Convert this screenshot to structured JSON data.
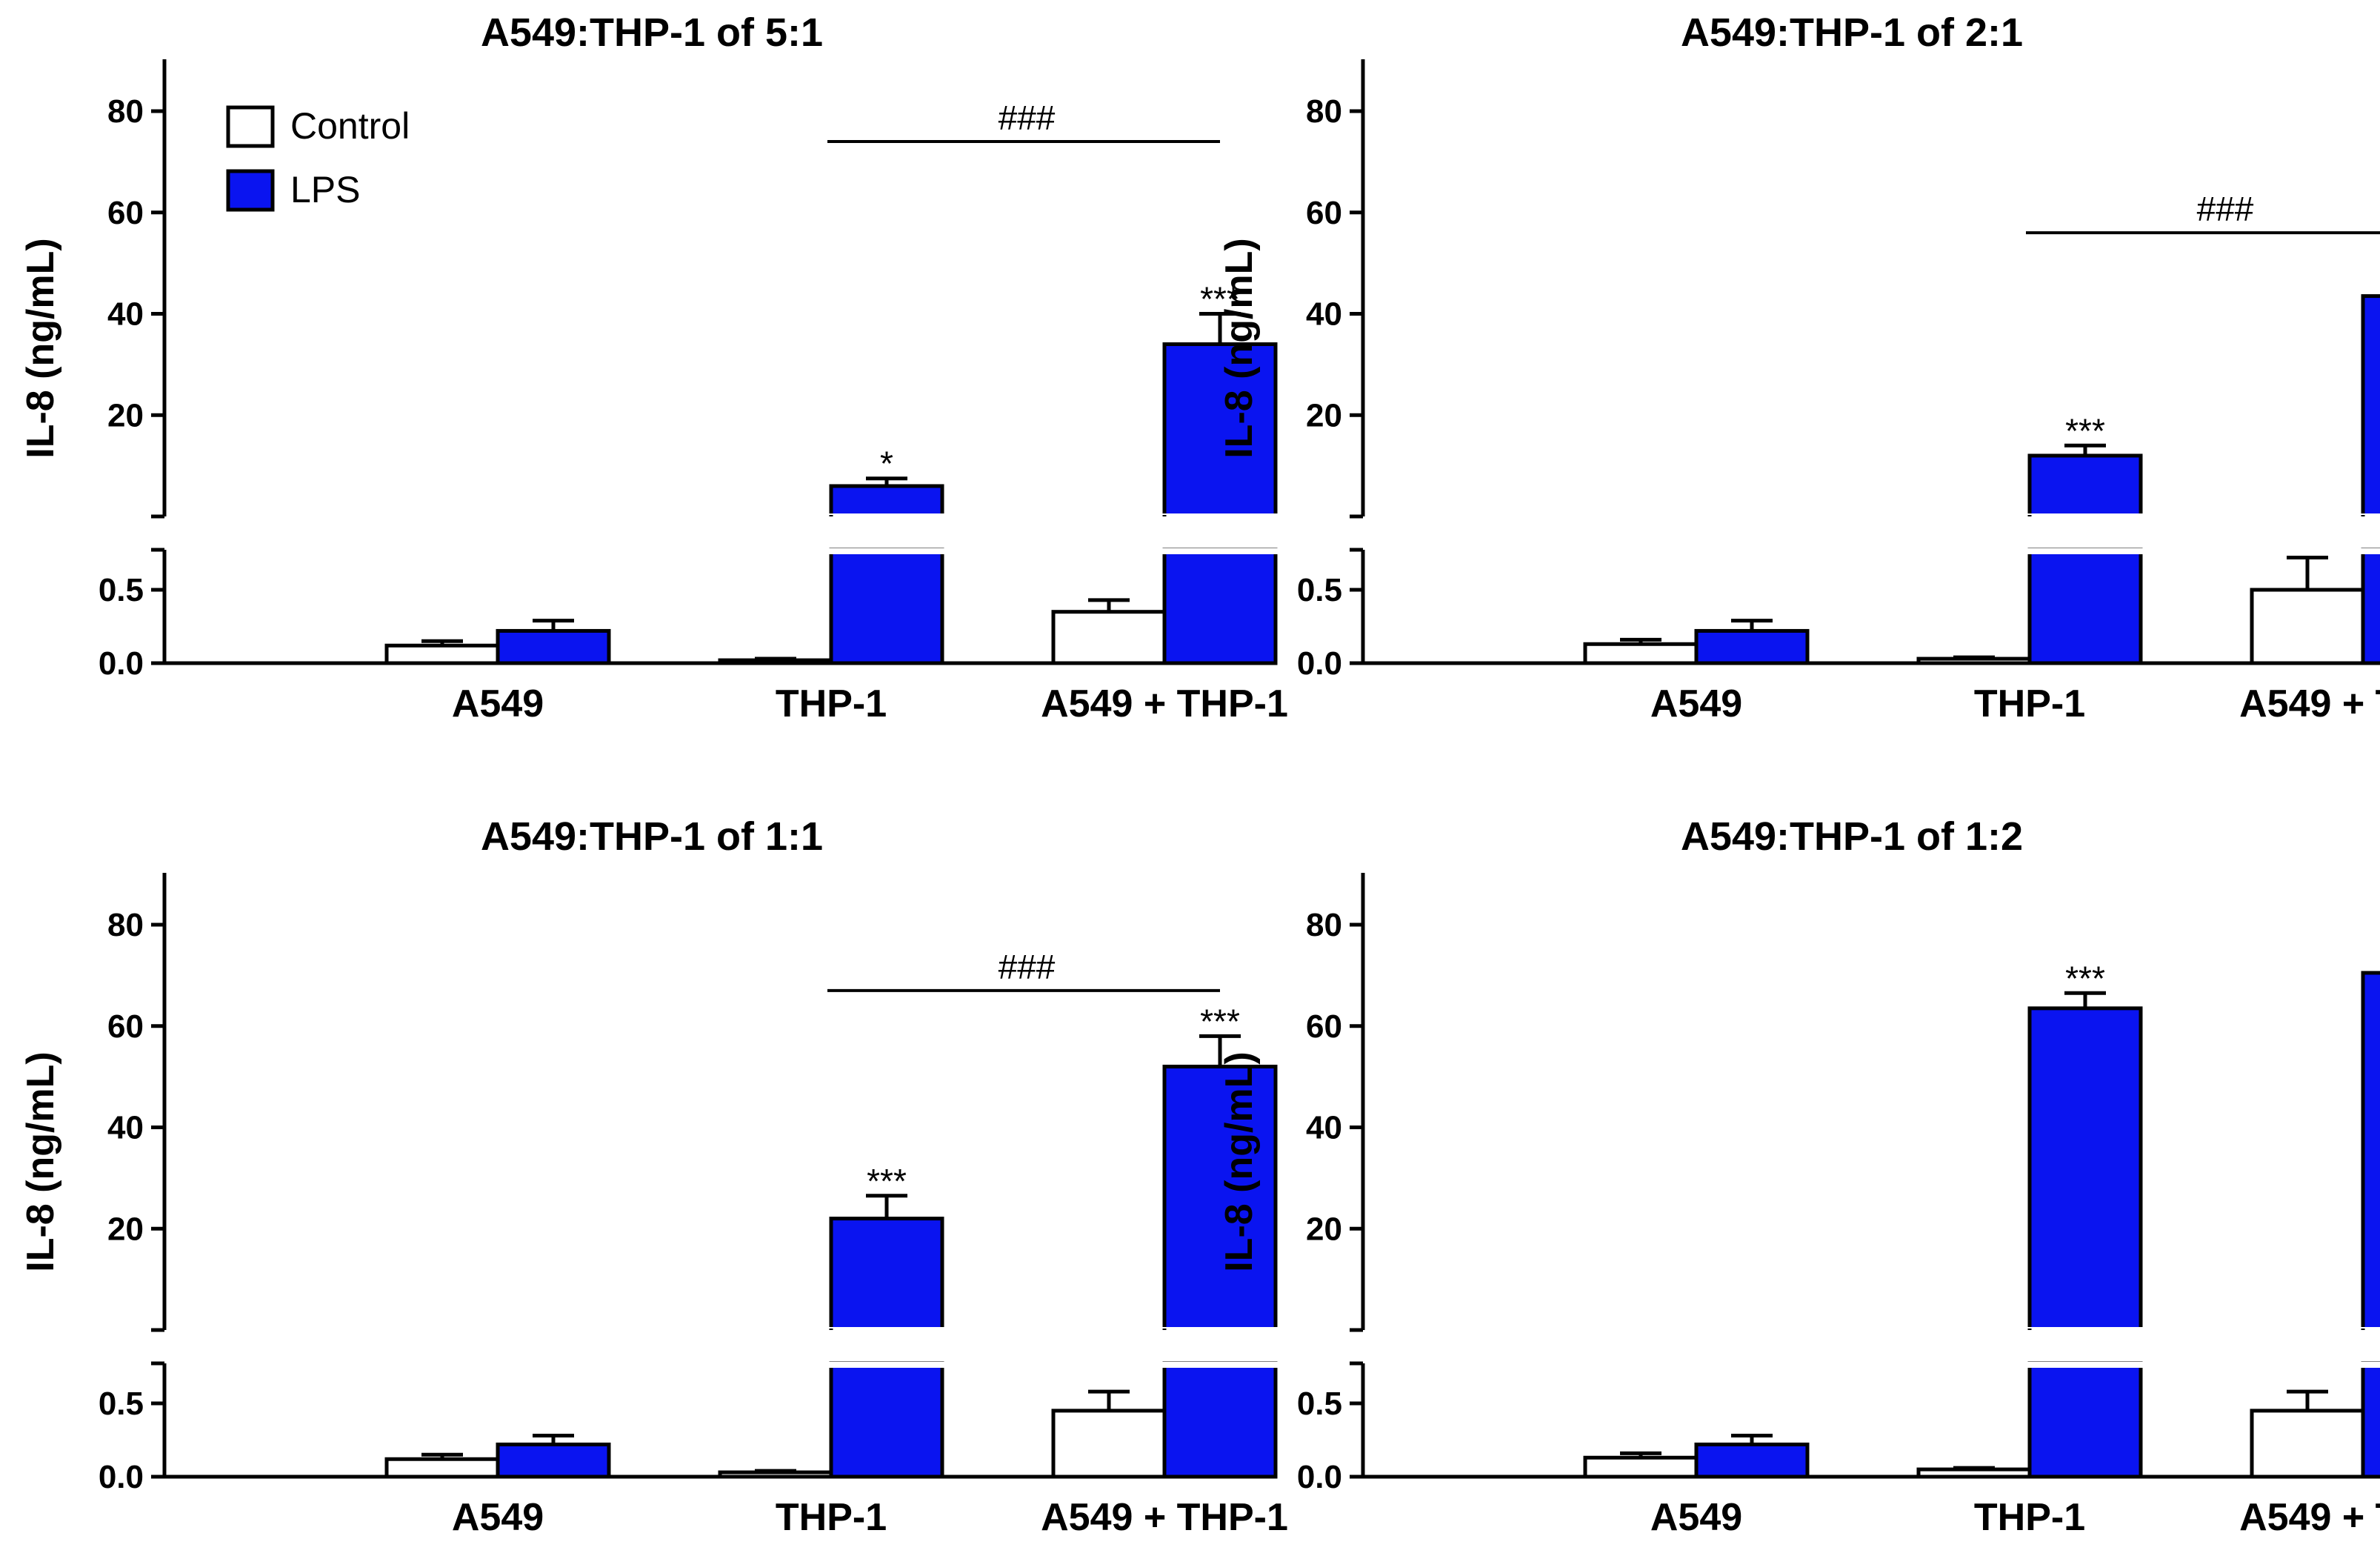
{
  "colors": {
    "control": "#ffffff",
    "lps": "#0a14f0",
    "stroke": "#000000"
  },
  "legend": {
    "placement": "top-left",
    "entries": [
      "Control",
      "LPS"
    ]
  },
  "chart_data": [
    {
      "type": "bar",
      "title": "A549:THP-1  of 5:1",
      "ylabel": "IL-8 (ng/mL)",
      "categories": [
        "A549",
        "THP-1",
        "A549 + THP-1"
      ],
      "y_break": {
        "lower_range": [
          0,
          0.75
        ],
        "upper_range": [
          0,
          90
        ],
        "lower_ticks": [
          "0.0",
          "0.5"
        ],
        "upper_ticks": [
          "20",
          "40",
          "60",
          "80"
        ]
      },
      "series": [
        {
          "name": "Control",
          "values": [
            0.12,
            0.02,
            0.35
          ],
          "errors": [
            0.03,
            0.01,
            0.08
          ]
        },
        {
          "name": "LPS",
          "values": [
            0.22,
            6,
            34
          ],
          "errors": [
            0.07,
            1.5,
            6
          ]
        }
      ],
      "annotations": [
        {
          "series": "LPS",
          "category": "THP-1",
          "text": "*"
        },
        {
          "series": "LPS",
          "category": "A549 + THP-1",
          "text": "***"
        }
      ],
      "bracket": {
        "text": "###",
        "y": 74
      }
    },
    {
      "type": "bar",
      "title": "A549:THP-1  of 2:1",
      "ylabel": "IL-8 (ng/mL)",
      "categories": [
        "A549",
        "THP-1",
        "A549 + THP-1"
      ],
      "y_break": {
        "lower_range": [
          0,
          0.75
        ],
        "upper_range": [
          0,
          90
        ],
        "lower_ticks": [
          "0.0",
          "0.5"
        ],
        "upper_ticks": [
          "20",
          "40",
          "60",
          "80"
        ]
      },
      "series": [
        {
          "name": "Control",
          "values": [
            0.13,
            0.03,
            0.5
          ],
          "errors": [
            0.03,
            0.01,
            0.22
          ]
        },
        {
          "name": "LPS",
          "values": [
            0.22,
            12,
            43.5
          ],
          "errors": [
            0.07,
            2,
            3.5
          ]
        }
      ],
      "annotations": [
        {
          "series": "LPS",
          "category": "THP-1",
          "text": "***"
        },
        {
          "series": "LPS",
          "category": "A549 + THP-1",
          "text": "***"
        }
      ],
      "bracket": {
        "text": "###",
        "y": 56
      }
    },
    {
      "type": "bar",
      "title": "A549:THP-1  of 1:1",
      "ylabel": "IL-8 (ng/mL)",
      "categories": [
        "A549",
        "THP-1",
        "A549 + THP-1"
      ],
      "y_break": {
        "lower_range": [
          0,
          0.75
        ],
        "upper_range": [
          0,
          90
        ],
        "lower_ticks": [
          "0.0",
          "0.5"
        ],
        "upper_ticks": [
          "20",
          "40",
          "60",
          "80"
        ]
      },
      "series": [
        {
          "name": "Control",
          "values": [
            0.12,
            0.03,
            0.45
          ],
          "errors": [
            0.03,
            0.01,
            0.13
          ]
        },
        {
          "name": "LPS",
          "values": [
            0.22,
            22,
            52
          ],
          "errors": [
            0.06,
            4.5,
            6
          ]
        }
      ],
      "annotations": [
        {
          "series": "LPS",
          "category": "THP-1",
          "text": "***"
        },
        {
          "series": "LPS",
          "category": "A549 + THP-1",
          "text": "***"
        }
      ],
      "bracket": {
        "text": "###",
        "y": 67
      }
    },
    {
      "type": "bar",
      "title": "A549:THP-1  of 1:2",
      "ylabel": "IL-8 (ng/mL)",
      "categories": [
        "A549",
        "THP-1",
        "A549 + THP-1"
      ],
      "y_break": {
        "lower_range": [
          0,
          0.75
        ],
        "upper_range": [
          0,
          90
        ],
        "lower_ticks": [
          "0.0",
          "0.5"
        ],
        "upper_ticks": [
          "20",
          "40",
          "60",
          "80"
        ]
      },
      "series": [
        {
          "name": "Control",
          "values": [
            0.13,
            0.05,
            0.45
          ],
          "errors": [
            0.03,
            0.01,
            0.13
          ]
        },
        {
          "name": "LPS",
          "values": [
            0.22,
            63.5,
            70.5
          ],
          "errors": [
            0.06,
            3,
            17
          ]
        }
      ],
      "annotations": [
        {
          "series": "LPS",
          "category": "THP-1",
          "text": "***"
        },
        {
          "series": "LPS",
          "category": "A549 + THP-1",
          "text": "***"
        }
      ]
    }
  ]
}
